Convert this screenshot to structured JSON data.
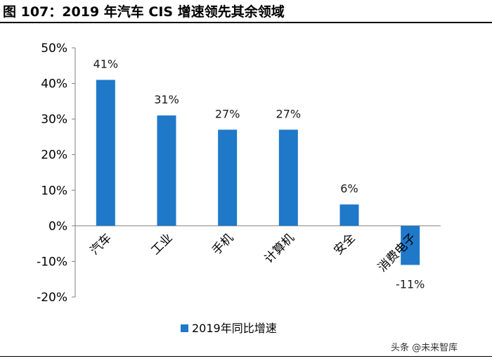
{
  "header": {
    "title": "图 107：2019 年汽车 CIS 增速领先其余领域"
  },
  "watermark": {
    "text": "头条 @未来智库"
  },
  "chart_data": {
    "type": "bar",
    "categories": [
      "汽车",
      "工业",
      "手机",
      "计算机",
      "安全",
      "消费电子"
    ],
    "series": [
      {
        "name": "2019年同比增速",
        "values": [
          41,
          31,
          27,
          27,
          6,
          -11
        ],
        "labels": [
          "41%",
          "31%",
          "27%",
          "27%",
          "6%",
          "-11%"
        ]
      }
    ],
    "ylim": [
      -20,
      50
    ],
    "yticks": [
      50,
      40,
      30,
      20,
      10,
      0,
      -10,
      -20
    ],
    "ytick_labels": [
      "50%",
      "40%",
      "30%",
      "20%",
      "10%",
      "0%",
      "-10%",
      "-20%"
    ],
    "grid": false,
    "legend_position": "bottom",
    "colors": {
      "bar": "#1f78c8",
      "axis": "#7f7f7f"
    }
  }
}
